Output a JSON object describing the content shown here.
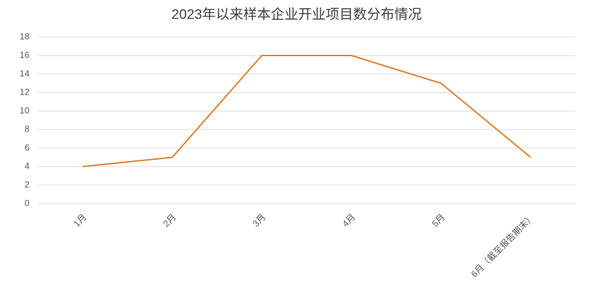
{
  "chart_data": {
    "type": "line",
    "title": "2023年以来样本企业开业项目数分布情况",
    "categories": [
      "1月",
      "2月",
      "3月",
      "4月",
      "5月",
      "6月（截至报告期末）"
    ],
    "series": [
      {
        "color": "#dd7f2e",
        "values": [
          4,
          5,
          16,
          16,
          13,
          5
        ]
      }
    ],
    "ylim": [
      0,
      18
    ],
    "yticks": [
      0,
      2,
      4,
      6,
      8,
      10,
      12,
      14,
      16,
      18
    ],
    "grid": true
  }
}
